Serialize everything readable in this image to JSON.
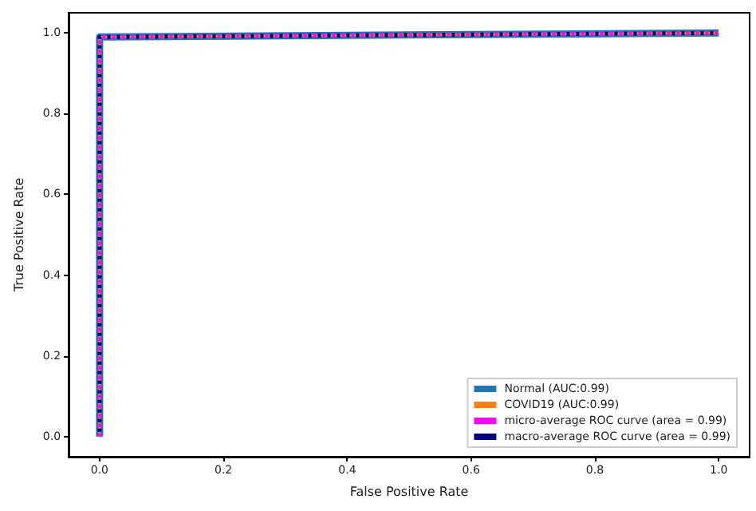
{
  "chart_data": {
    "type": "line",
    "xlabel": "False Positive Rate",
    "ylabel": "True Positive Rate",
    "xlim": [
      -0.05,
      1.05
    ],
    "ylim": [
      -0.05,
      1.05
    ],
    "xticks": [
      {
        "value": 0,
        "label": "0.0"
      },
      {
        "value": 0.2,
        "label": "0.2"
      },
      {
        "value": 0.4,
        "label": "0.4"
      },
      {
        "value": 0.6,
        "label": "0.6"
      },
      {
        "value": 0.8,
        "label": "0.8"
      },
      {
        "value": 1,
        "label": "1.0"
      }
    ],
    "yticks": [
      {
        "value": 0,
        "label": "0.0"
      },
      {
        "value": 0.2,
        "label": "0.2"
      },
      {
        "value": 0.4,
        "label": "0.4"
      },
      {
        "value": 0.6,
        "label": "0.6"
      },
      {
        "value": 0.8,
        "label": "0.8"
      },
      {
        "value": 1,
        "label": "1.0"
      }
    ],
    "series": [
      {
        "name": "Normal (AUC:0.99)",
        "color": "#1f77b4",
        "line_style": "solid",
        "x": [
          0,
          0,
          0.01,
          1
        ],
        "values": [
          0,
          0.99,
          0.99,
          1
        ]
      },
      {
        "name": "COVID19 (AUC:0.99)",
        "color": "#ff7f0e",
        "line_style": "solid",
        "x": [
          0,
          0,
          0.01,
          1
        ],
        "values": [
          0,
          0.99,
          0.99,
          1
        ]
      },
      {
        "name": "micro-average ROC curve (area = 0.99)",
        "color": "#ff00ff",
        "line_style": "dotted",
        "x": [
          0,
          0,
          0.01,
          1
        ],
        "values": [
          0,
          0.99,
          0.99,
          1
        ]
      },
      {
        "name": "macro-average ROC curve (area = 0.99)",
        "color": "#000080",
        "line_style": "dotted",
        "x": [
          0,
          0,
          0.01,
          1
        ],
        "values": [
          0,
          0.99,
          0.99,
          1
        ]
      }
    ],
    "marker": "none",
    "grid": false,
    "legend": "bottom right"
  }
}
